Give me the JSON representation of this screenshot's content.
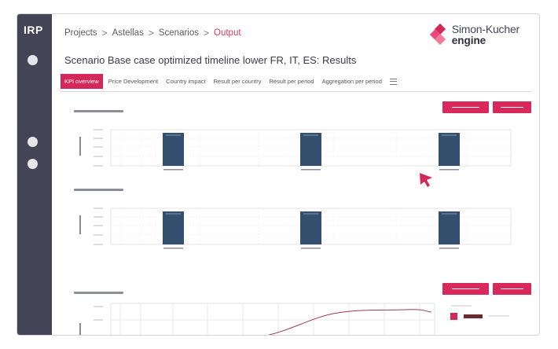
{
  "app": {
    "logo": "IRP"
  },
  "breadcrumb": {
    "items": [
      "Projects",
      "Astellas",
      "Scenarios",
      "Output"
    ],
    "separator": ">"
  },
  "brand": {
    "name_top": "Simon-Kucher",
    "name_bottom": "engine",
    "colors": [
      "#d5285a",
      "#f07a98",
      "#e9487a"
    ]
  },
  "page": {
    "title": "Scenario Base case optimized timeline lower FR, IT, ES: Results"
  },
  "tabs": {
    "items": [
      "KPI overview",
      "Price Development",
      "Country impact",
      "Result per country",
      "Result per period",
      "Aggregation per period"
    ],
    "active_index": 0,
    "more_icon": "hamburger-menu-icon"
  },
  "colors": {
    "sidebar": "#444457",
    "accent": "#d5285a",
    "bar": "#34506e",
    "line": "#9c3b4f",
    "legend_dark": "#6b2a2e"
  },
  "charts": {
    "top_bars": {
      "bars": 3
    },
    "middle_bars": {
      "bars": 3
    },
    "bottom_line": {
      "legend": [
        "",
        ""
      ]
    }
  }
}
